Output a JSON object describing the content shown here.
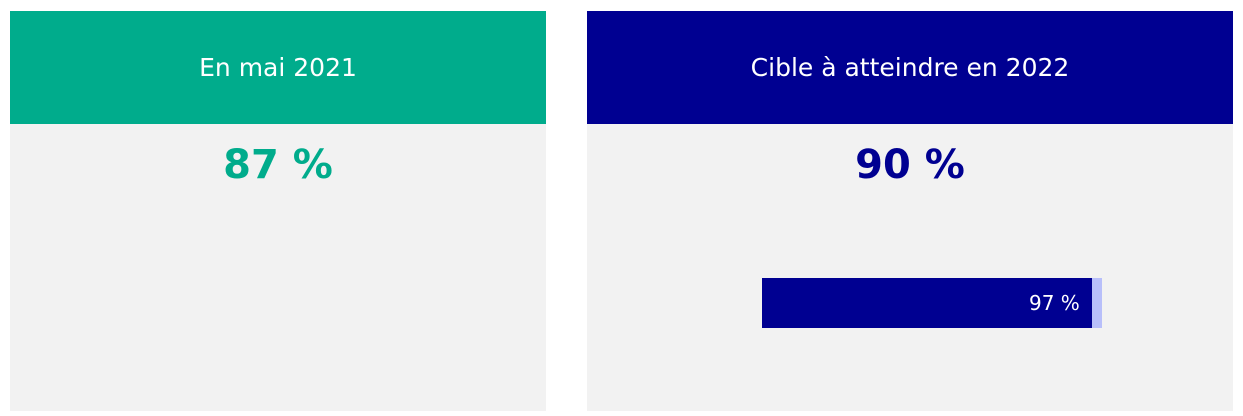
{
  "cards": [
    {
      "header": "En mai 2021",
      "value": "87 %"
    },
    {
      "header": "Cible à atteindre en 2022",
      "value": "90 %",
      "progress": {
        "value": 97,
        "label": "97 %"
      }
    }
  ]
}
